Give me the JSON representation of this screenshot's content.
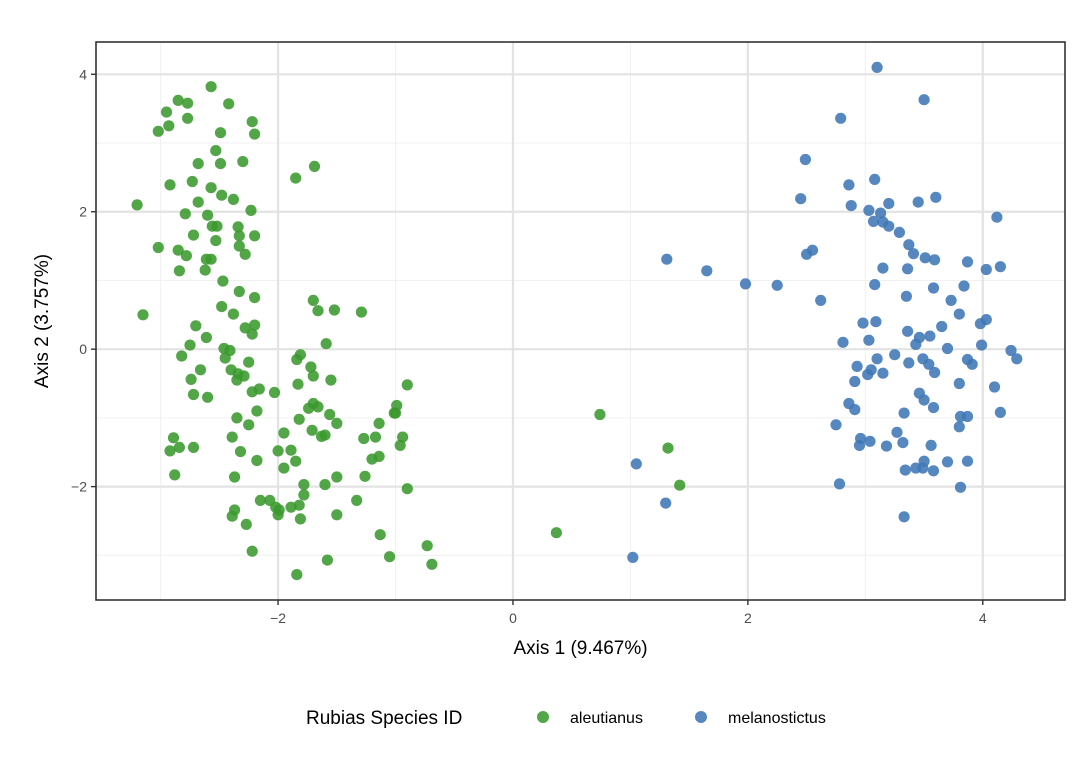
{
  "chart_data": {
    "type": "scatter",
    "title": "",
    "xlabel": "Axis 1 (9.467%)",
    "ylabel": "Axis 2 (3.757%)",
    "xlim": [
      -3.55,
      4.7
    ],
    "ylim": [
      -3.65,
      4.47
    ],
    "xticks": [
      -2,
      0,
      2,
      4
    ],
    "yticks": [
      -2,
      0,
      2,
      4
    ],
    "xtick_labels": [
      "−2",
      "0",
      "2",
      "4"
    ],
    "ytick_labels": [
      "−2",
      "0",
      "2",
      "4"
    ],
    "grid": true,
    "legend": {
      "title": "Rubias Species ID",
      "position": "bottom"
    },
    "series": [
      {
        "name": "aleutianus",
        "color": "#3a9a2e",
        "points": [
          [
            -2.57,
            3.82
          ],
          [
            -2.85,
            3.62
          ],
          [
            -2.77,
            3.58
          ],
          [
            -2.95,
            3.45
          ],
          [
            -2.42,
            3.57
          ],
          [
            -2.77,
            3.36
          ],
          [
            -2.93,
            3.25
          ],
          [
            -3.02,
            3.17
          ],
          [
            -2.49,
            3.15
          ],
          [
            -2.22,
            3.31
          ],
          [
            -2.2,
            3.13
          ],
          [
            -2.53,
            2.89
          ],
          [
            -2.68,
            2.7
          ],
          [
            -2.3,
            2.73
          ],
          [
            -2.49,
            2.7
          ],
          [
            -1.69,
            2.66
          ],
          [
            -1.85,
            2.49
          ],
          [
            -2.73,
            2.44
          ],
          [
            -2.92,
            2.39
          ],
          [
            -2.57,
            2.35
          ],
          [
            -2.48,
            2.24
          ],
          [
            -2.38,
            2.18
          ],
          [
            -3.2,
            2.1
          ],
          [
            -2.68,
            2.14
          ],
          [
            -2.79,
            1.97
          ],
          [
            -2.23,
            2.02
          ],
          [
            -2.6,
            1.95
          ],
          [
            -2.56,
            1.79
          ],
          [
            -2.52,
            1.79
          ],
          [
            -2.34,
            1.78
          ],
          [
            -2.72,
            1.66
          ],
          [
            -2.33,
            1.65
          ],
          [
            -2.2,
            1.65
          ],
          [
            -2.53,
            1.58
          ],
          [
            -2.33,
            1.5
          ],
          [
            -3.02,
            1.48
          ],
          [
            -2.85,
            1.44
          ],
          [
            -2.78,
            1.36
          ],
          [
            -2.61,
            1.31
          ],
          [
            -2.57,
            1.31
          ],
          [
            -2.28,
            1.38
          ],
          [
            -2.84,
            1.14
          ],
          [
            -2.62,
            1.15
          ],
          [
            -2.47,
            0.99
          ],
          [
            -2.33,
            0.84
          ],
          [
            -2.2,
            0.75
          ],
          [
            -2.48,
            0.62
          ],
          [
            -2.38,
            0.51
          ],
          [
            -3.15,
            0.5
          ],
          [
            -2.7,
            0.34
          ],
          [
            -2.28,
            0.31
          ],
          [
            -2.2,
            0.35
          ],
          [
            -2.22,
            0.22
          ],
          [
            -2.61,
            0.17
          ],
          [
            -2.75,
            0.06
          ],
          [
            -2.46,
            0.01
          ],
          [
            -2.41,
            -0.02
          ],
          [
            -2.82,
            -0.1
          ],
          [
            -2.45,
            -0.13
          ],
          [
            -2.25,
            -0.19
          ],
          [
            -2.66,
            -0.3
          ],
          [
            -2.4,
            -0.3
          ],
          [
            -2.34,
            -0.36
          ],
          [
            -2.29,
            -0.39
          ],
          [
            -2.35,
            -0.45
          ],
          [
            -2.74,
            -0.44
          ],
          [
            -2.16,
            -0.58
          ],
          [
            -2.22,
            -0.62
          ],
          [
            -2.03,
            -0.63
          ],
          [
            -2.72,
            -0.66
          ],
          [
            -2.6,
            -0.7
          ],
          [
            -2.18,
            -0.9
          ],
          [
            -2.35,
            -1.0
          ],
          [
            -2.25,
            -1.1
          ],
          [
            -2.89,
            -1.29
          ],
          [
            -2.39,
            -1.28
          ],
          [
            -2.84,
            -1.43
          ],
          [
            -2.72,
            -1.43
          ],
          [
            -2.92,
            -1.48
          ],
          [
            -2.32,
            -1.49
          ],
          [
            -2.18,
            -1.62
          ],
          [
            -2.37,
            -1.86
          ],
          [
            -2.88,
            -1.83
          ],
          [
            -2.15,
            -2.2
          ],
          [
            -2.37,
            -2.34
          ],
          [
            -2.39,
            -2.43
          ],
          [
            -2.07,
            -2.2
          ],
          [
            -2.02,
            -2.3
          ],
          [
            -2.0,
            -2.41
          ],
          [
            -2.27,
            -2.55
          ],
          [
            -2.22,
            -2.94
          ],
          [
            -1.84,
            -0.15
          ],
          [
            -1.81,
            -0.08
          ],
          [
            -1.83,
            -0.51
          ],
          [
            -1.59,
            0.08
          ],
          [
            -1.72,
            -0.26
          ],
          [
            -1.7,
            -0.39
          ],
          [
            -1.55,
            -0.45
          ],
          [
            -1.7,
            0.71
          ],
          [
            -1.66,
            0.56
          ],
          [
            -1.52,
            0.57
          ],
          [
            -1.29,
            0.54
          ],
          [
            -1.7,
            -0.79
          ],
          [
            -1.66,
            -0.84
          ],
          [
            -1.74,
            -0.86
          ],
          [
            -1.56,
            -0.95
          ],
          [
            -1.82,
            -1.02
          ],
          [
            -1.5,
            -1.08
          ],
          [
            -1.71,
            -1.18
          ],
          [
            -1.6,
            -1.25
          ],
          [
            -1.63,
            -1.27
          ],
          [
            -1.95,
            -1.22
          ],
          [
            -1.89,
            -1.47
          ],
          [
            -2.0,
            -1.48
          ],
          [
            -1.85,
            -1.63
          ],
          [
            -1.95,
            -1.73
          ],
          [
            -1.27,
            -1.3
          ],
          [
            -1.17,
            -1.28
          ],
          [
            -1.14,
            -1.08
          ],
          [
            -1.01,
            -0.93
          ],
          [
            -0.99,
            -0.82
          ],
          [
            -1.2,
            -1.6
          ],
          [
            -1.14,
            -1.56
          ],
          [
            -0.94,
            -1.28
          ],
          [
            -0.96,
            -1.4
          ],
          [
            -1.26,
            -1.85
          ],
          [
            -1.5,
            -1.86
          ],
          [
            -1.6,
            -1.97
          ],
          [
            -1.78,
            -1.97
          ],
          [
            -1.33,
            -2.2
          ],
          [
            -1.5,
            -2.41
          ],
          [
            -1.78,
            -2.12
          ],
          [
            -1.82,
            -2.27
          ],
          [
            -1.89,
            -2.3
          ],
          [
            -1.99,
            -2.34
          ],
          [
            -1.81,
            -2.47
          ],
          [
            -1.84,
            -3.28
          ],
          [
            -1.58,
            -3.07
          ],
          [
            -1.13,
            -2.7
          ],
          [
            -1.05,
            -3.02
          ],
          [
            -0.73,
            -2.86
          ],
          [
            -0.69,
            -3.13
          ],
          [
            -0.9,
            -2.03
          ],
          [
            -0.9,
            -0.52
          ],
          [
            -1.0,
            -0.93
          ],
          [
            0.37,
            -2.67
          ],
          [
            0.74,
            -0.95
          ],
          [
            1.32,
            -1.44
          ],
          [
            1.42,
            -1.98
          ]
        ]
      },
      {
        "name": "melanostictus",
        "color": "#3f78b6",
        "points": [
          [
            3.1,
            4.1
          ],
          [
            3.5,
            3.63
          ],
          [
            2.79,
            3.36
          ],
          [
            2.49,
            2.76
          ],
          [
            3.08,
            2.47
          ],
          [
            2.86,
            2.39
          ],
          [
            2.45,
            2.19
          ],
          [
            3.2,
            2.12
          ],
          [
            3.45,
            2.14
          ],
          [
            3.6,
            2.21
          ],
          [
            2.88,
            2.09
          ],
          [
            3.03,
            2.02
          ],
          [
            3.13,
            1.98
          ],
          [
            3.07,
            1.86
          ],
          [
            3.15,
            1.85
          ],
          [
            3.2,
            1.79
          ],
          [
            3.29,
            1.7
          ],
          [
            4.12,
            1.92
          ],
          [
            3.37,
            1.52
          ],
          [
            3.41,
            1.39
          ],
          [
            3.51,
            1.33
          ],
          [
            3.59,
            1.3
          ],
          [
            2.55,
            1.44
          ],
          [
            2.5,
            1.38
          ],
          [
            3.87,
            1.27
          ],
          [
            4.03,
            1.16
          ],
          [
            4.15,
            1.2
          ],
          [
            3.36,
            1.17
          ],
          [
            3.15,
            1.18
          ],
          [
            3.08,
            0.94
          ],
          [
            3.84,
            0.92
          ],
          [
            3.58,
            0.89
          ],
          [
            3.35,
            0.77
          ],
          [
            3.73,
            0.71
          ],
          [
            3.8,
            0.51
          ],
          [
            4.03,
            0.43
          ],
          [
            3.98,
            0.37
          ],
          [
            3.09,
            0.4
          ],
          [
            2.98,
            0.38
          ],
          [
            3.36,
            0.26
          ],
          [
            3.46,
            0.17
          ],
          [
            3.55,
            0.19
          ],
          [
            3.65,
            0.33
          ],
          [
            2.62,
            0.71
          ],
          [
            2.25,
            0.93
          ],
          [
            1.98,
            0.95
          ],
          [
            1.65,
            1.14
          ],
          [
            1.31,
            1.31
          ],
          [
            2.81,
            0.1
          ],
          [
            3.03,
            0.13
          ],
          [
            3.43,
            0.07
          ],
          [
            3.7,
            0.01
          ],
          [
            3.99,
            0.06
          ],
          [
            4.24,
            -0.02
          ],
          [
            4.29,
            -0.14
          ],
          [
            3.25,
            -0.08
          ],
          [
            3.1,
            -0.14
          ],
          [
            3.37,
            -0.2
          ],
          [
            3.49,
            -0.14
          ],
          [
            3.54,
            -0.22
          ],
          [
            3.87,
            -0.15
          ],
          [
            3.91,
            -0.22
          ],
          [
            3.05,
            -0.3
          ],
          [
            2.93,
            -0.25
          ],
          [
            3.15,
            -0.35
          ],
          [
            3.02,
            -0.37
          ],
          [
            3.59,
            -0.34
          ],
          [
            2.91,
            -0.47
          ],
          [
            3.8,
            -0.5
          ],
          [
            4.1,
            -0.55
          ],
          [
            3.46,
            -0.64
          ],
          [
            3.5,
            -0.74
          ],
          [
            3.58,
            -0.85
          ],
          [
            2.86,
            -0.79
          ],
          [
            3.33,
            -0.93
          ],
          [
            3.81,
            -0.98
          ],
          [
            3.87,
            -0.98
          ],
          [
            4.15,
            -0.92
          ],
          [
            2.91,
            -0.88
          ],
          [
            2.75,
            -1.1
          ],
          [
            3.8,
            -1.13
          ],
          [
            3.27,
            -1.21
          ],
          [
            2.96,
            -1.3
          ],
          [
            3.04,
            -1.34
          ],
          [
            3.32,
            -1.36
          ],
          [
            3.56,
            -1.4
          ],
          [
            2.95,
            -1.4
          ],
          [
            3.18,
            -1.41
          ],
          [
            3.7,
            -1.64
          ],
          [
            3.87,
            -1.63
          ],
          [
            3.5,
            -1.63
          ],
          [
            3.34,
            -1.76
          ],
          [
            3.43,
            -1.73
          ],
          [
            3.49,
            -1.73
          ],
          [
            3.58,
            -1.77
          ],
          [
            3.81,
            -2.01
          ],
          [
            2.78,
            -1.96
          ],
          [
            3.33,
            -2.44
          ],
          [
            1.3,
            -2.24
          ],
          [
            1.05,
            -1.67
          ],
          [
            1.02,
            -3.03
          ]
        ]
      }
    ]
  }
}
